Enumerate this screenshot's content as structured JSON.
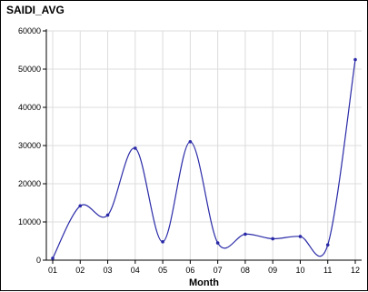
{
  "chart_data": {
    "type": "line",
    "title": "SAIDI_AVG",
    "xlabel": "Month",
    "ylabel": "",
    "categories": [
      "01",
      "02",
      "03",
      "04",
      "05",
      "06",
      "07",
      "08",
      "09",
      "10",
      "11",
      "12"
    ],
    "series": [
      {
        "values": [
          500,
          14200,
          11800,
          29300,
          4800,
          31000,
          4500,
          6800,
          5600,
          6200,
          4000,
          52500
        ]
      }
    ],
    "yticks": [
      0,
      10000,
      20000,
      30000,
      40000,
      50000,
      60000
    ],
    "ylim": [
      0,
      60000
    ],
    "grid": true,
    "line_color": "#2a2aa8",
    "grid_color": "#dcdcdc"
  }
}
